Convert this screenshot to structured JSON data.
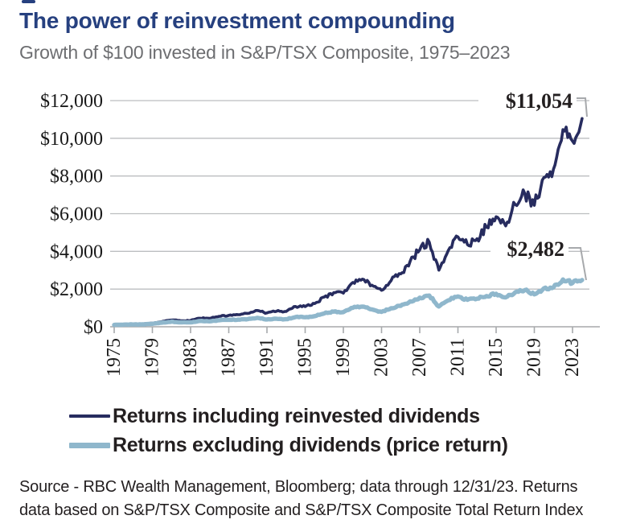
{
  "header": {
    "title": "The power of reinvestment compounding",
    "subtitle": "Growth of $100 invested in S&P/TSX Composite, 1975–2023"
  },
  "chart_data": {
    "type": "line",
    "title": "The power of reinvestment compounding",
    "subtitle": "Growth of $100 invested in S&P/TSX Composite, 1975–2023",
    "xlabel": "",
    "ylabel": "",
    "ylim": [
      0,
      12000
    ],
    "y_ticks": [
      0,
      2000,
      4000,
      6000,
      8000,
      10000,
      12000
    ],
    "y_tick_labels": [
      "$0",
      "$2,000",
      "$4,000",
      "$6,000",
      "$8,000",
      "$10,000",
      "$12,000"
    ],
    "x_tick_labels": [
      "1975",
      "1979",
      "1983",
      "1987",
      "1991",
      "1995",
      "1999",
      "2003",
      "2007",
      "2011",
      "2015",
      "2019",
      "2023"
    ],
    "x_range": [
      1975,
      2024
    ],
    "grid": true,
    "legend_position": "bottom",
    "start_year": 1975,
    "start_value": 100,
    "series": [
      {
        "name": "Returns including reinvested dividends",
        "color": "#272c5f",
        "end_label": "$11,054",
        "end_value": 11054,
        "values": [
          118,
          131,
          145,
          188,
          272,
          354,
          318,
          335,
          454,
          443,
          554,
          604,
          640,
          711,
          863,
          735,
          823,
          812,
          1076,
          1074,
          1230,
          1578,
          1815,
          1786,
          2352,
          2526,
          2208,
          1934,
          2450,
          2805,
          3481,
          4083,
          4483,
          3004,
          4058,
          4772,
          4357,
          4671,
          5278,
          5837,
          5353,
          6482,
          7072,
          6443,
          7918,
          8361,
          10460,
          9853,
          11054
        ]
      },
      {
        "name": "Returns excluding dividends (price return)",
        "color": "#8fb7cc",
        "end_label": "$2,482",
        "end_value": 2482,
        "values": [
          114,
          121,
          127,
          157,
          217,
          272,
          234,
          234,
          306,
          287,
          347,
          367,
          378,
          406,
          475,
          390,
          421,
          401,
          518,
          505,
          565,
          710,
          802,
          777,
          1008,
          1070,
          921,
          792,
          985,
          1107,
          1350,
          1546,
          1657,
          1076,
          1407,
          1610,
          1432,
          1489,
          1631,
          1752,
          1558,
          1831,
          1941,
          1715,
          2043,
          2088,
          2510,
          2322,
          2482
        ]
      }
    ]
  },
  "footer": {
    "source_lines": [
      "Source - RBC Wealth Management, Bloomberg; data through 12/31/23. Returns",
      "data based on S&P/TSX Composite and S&P/TSX Composite Total Return Index"
    ]
  },
  "colors": {
    "title": "#26407f",
    "subtitle": "#6d6e71",
    "axis": "#a7a9ac",
    "grid": "#bcbec0",
    "label_text": "#1a1a1a",
    "annotation_text": "#231f20",
    "background": "#ffffff"
  }
}
